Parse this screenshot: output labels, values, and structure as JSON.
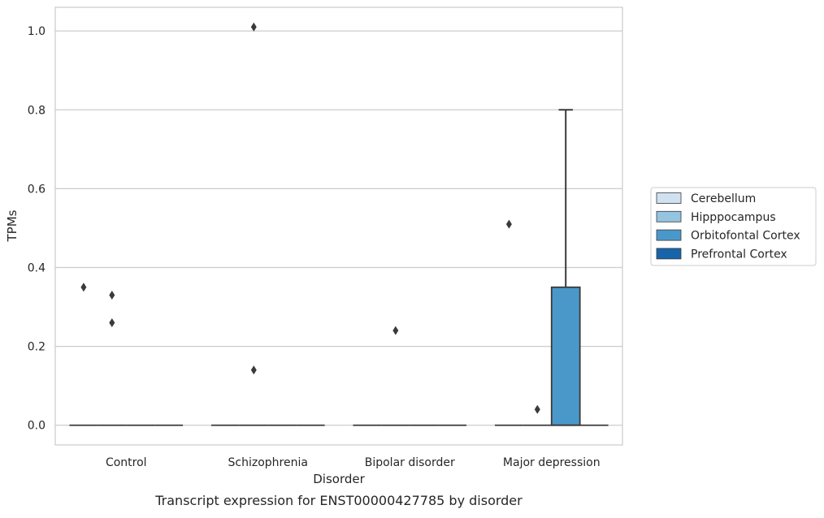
{
  "chart_data": {
    "type": "box",
    "title": "",
    "caption": "Transcript expression for ENST00000427785 by disorder",
    "xlabel": "Disorder",
    "ylabel": "TPMs",
    "ylim": [
      -0.05,
      1.06
    ],
    "yticks": [
      0.0,
      0.2,
      0.4,
      0.6,
      0.8,
      1.0
    ],
    "ytick_labels": [
      "0.0",
      "0.2",
      "0.4",
      "0.6",
      "0.8",
      "1.0"
    ],
    "grid": "horizontal",
    "legend_position": "right",
    "categories": [
      "Control",
      "Schizophrenia",
      "Bipolar disorder",
      "Major depression"
    ],
    "series": [
      {
        "name": "Cerebellum",
        "color": "#d0e1f2",
        "boxes": [
          {
            "q1": 0,
            "median": 0,
            "q3": 0,
            "whisker_low": 0,
            "whisker_high": 0,
            "outliers": [
              0.35
            ]
          },
          {
            "q1": 0,
            "median": 0,
            "q3": 0,
            "whisker_low": 0,
            "whisker_high": 0,
            "outliers": []
          },
          {
            "q1": 0,
            "median": 0,
            "q3": 0,
            "whisker_low": 0,
            "whisker_high": 0,
            "outliers": []
          },
          {
            "q1": 0,
            "median": 0,
            "q3": 0,
            "whisker_low": 0,
            "whisker_high": 0,
            "outliers": [
              0.51
            ]
          }
        ]
      },
      {
        "name": "Hipppocampus",
        "color": "#94c4df",
        "boxes": [
          {
            "q1": 0,
            "median": 0,
            "q3": 0,
            "whisker_low": 0,
            "whisker_high": 0,
            "outliers": [
              0.33,
              0.26
            ]
          },
          {
            "q1": 0,
            "median": 0,
            "q3": 0,
            "whisker_low": 0,
            "whisker_high": 0,
            "outliers": [
              1.01,
              0.14
            ]
          },
          {
            "q1": 0,
            "median": 0,
            "q3": 0,
            "whisker_low": 0,
            "whisker_high": 0,
            "outliers": [
              0.24
            ]
          },
          {
            "q1": 0,
            "median": 0,
            "q3": 0,
            "whisker_low": 0,
            "whisker_high": 0,
            "outliers": [
              0.04
            ]
          }
        ]
      },
      {
        "name": "Orbitofontal Cortex",
        "color": "#4a98c9",
        "boxes": [
          {
            "q1": 0,
            "median": 0,
            "q3": 0,
            "whisker_low": 0,
            "whisker_high": 0,
            "outliers": []
          },
          {
            "q1": 0,
            "median": 0,
            "q3": 0,
            "whisker_low": 0,
            "whisker_high": 0,
            "outliers": []
          },
          {
            "q1": 0,
            "median": 0,
            "q3": 0,
            "whisker_low": 0,
            "whisker_high": 0,
            "outliers": []
          },
          {
            "q1": 0,
            "median": 0,
            "q3": 0.35,
            "whisker_low": 0,
            "whisker_high": 0.8,
            "outliers": []
          }
        ]
      },
      {
        "name": "Prefrontal Cortex",
        "color": "#1764ab",
        "boxes": [
          {
            "q1": 0,
            "median": 0,
            "q3": 0,
            "whisker_low": 0,
            "whisker_high": 0,
            "outliers": []
          },
          {
            "q1": 0,
            "median": 0,
            "q3": 0,
            "whisker_low": 0,
            "whisker_high": 0,
            "outliers": []
          },
          {
            "q1": 0,
            "median": 0,
            "q3": 0,
            "whisker_low": 0,
            "whisker_high": 0,
            "outliers": []
          },
          {
            "q1": 0,
            "median": 0,
            "q3": 0,
            "whisker_low": 0,
            "whisker_high": 0,
            "outliers": []
          }
        ]
      }
    ]
  }
}
